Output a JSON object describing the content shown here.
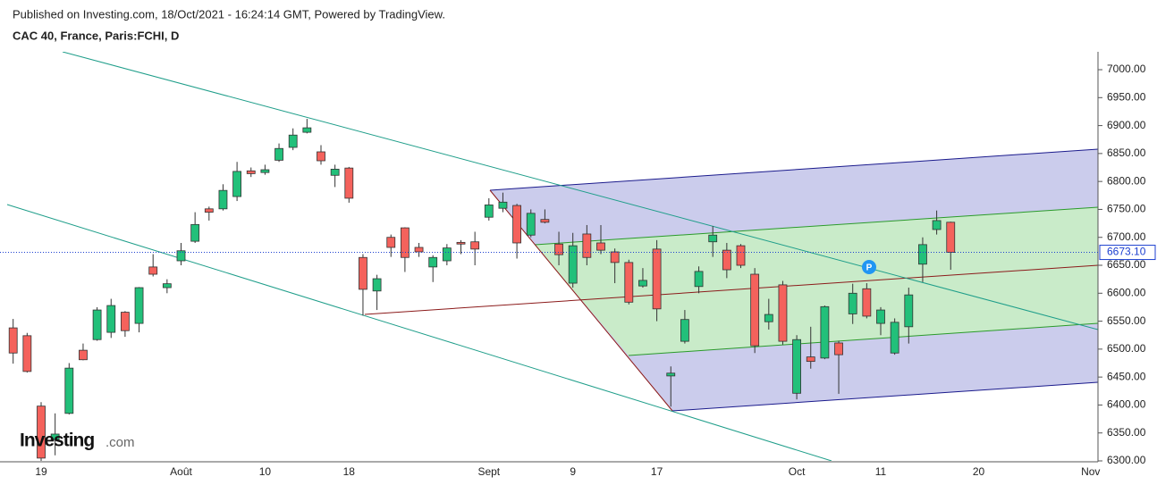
{
  "header": {
    "published": "Published on Investing.com, 18/Oct/2021 - 16:24:14 GMT, Powered by TradingView.",
    "symbol": "CAC 40, France, Paris:FCHI, D"
  },
  "logo": {
    "brand": "Investing",
    "suffix": ".com"
  },
  "marker": "P",
  "chart_data": {
    "type": "candlestick",
    "categories": [
      null,
      null,
      "19",
      null,
      null,
      null,
      null,
      null,
      null,
      null,
      null,
      null,
      "Août",
      null,
      null,
      null,
      null,
      null,
      "10",
      null,
      null,
      null,
      null,
      null,
      "18",
      null,
      null,
      null,
      null,
      null,
      null,
      null,
      null,
      null,
      "Sept",
      null,
      null,
      null,
      null,
      null,
      "9",
      null,
      null,
      null,
      null,
      null,
      "17",
      null,
      null,
      null,
      null,
      null,
      null,
      null,
      null,
      null,
      "Oct",
      null,
      null,
      null,
      null,
      null,
      "11",
      null,
      null,
      null,
      null,
      null,
      null,
      "20",
      null,
      null,
      null,
      null,
      null,
      null,
      null,
      "Nov"
    ],
    "open": [
      6538,
      6524,
      6398,
      6338,
      6385,
      6498,
      6517,
      6530,
      6566,
      6546,
      6647,
      6610,
      6658,
      6693,
      6751,
      6751,
      6773,
      6819,
      6816,
      6838,
      6861,
      6888,
      6853,
      6811,
      6824,
      6664,
      6604,
      6700,
      6717,
      6682,
      6647,
      6658,
      6691,
      6692,
      6736,
      6752,
      6757,
      6704,
      6732,
      6688,
      6618,
      6706,
      6690,
      6674,
      6655,
      6613,
      6679,
      6452,
      6514,
      6612,
      6692,
      6677,
      6685,
      6634,
      6549,
      6615,
      6421,
      6486,
      6484,
      6511,
      6563,
      6608,
      6546,
      6493,
      6540,
      6652,
      6714,
      6727,
      null,
      null,
      null,
      null,
      null,
      null,
      null,
      null,
      null,
      null
    ],
    "high": [
      6554,
      6529,
      6405,
      6385,
      6475,
      6510,
      6575,
      6590,
      6568,
      6611,
      6670,
      6625,
      6690,
      6745,
      6755,
      6795,
      6835,
      6825,
      6830,
      6868,
      6895,
      6912,
      6865,
      6830,
      6826,
      6670,
      6633,
      6705,
      6718,
      6690,
      6668,
      6688,
      6695,
      6710,
      6770,
      6780,
      6760,
      6750,
      6750,
      6710,
      6708,
      6722,
      6722,
      6680,
      6660,
      6645,
      6695,
      6469,
      6570,
      6648,
      6720,
      6690,
      6688,
      6645,
      6590,
      6622,
      6525,
      6540,
      6578,
      6515,
      6617,
      6618,
      6575,
      6555,
      6610,
      6700,
      6748,
      6728,
      null,
      null,
      null,
      null,
      null,
      null,
      null,
      null,
      null,
      null
    ],
    "low": [
      6474,
      6458,
      6300,
      6310,
      6383,
      6480,
      6515,
      6520,
      6522,
      6530,
      6630,
      6600,
      6650,
      6690,
      6730,
      6748,
      6765,
      6808,
      6812,
      6835,
      6856,
      6886,
      6830,
      6790,
      6762,
      6560,
      6570,
      6665,
      6638,
      6665,
      6620,
      6650,
      6670,
      6650,
      6730,
      6745,
      6662,
      6700,
      6725,
      6650,
      6610,
      6650,
      6670,
      6618,
      6580,
      6610,
      6550,
      6397,
      6510,
      6600,
      6665,
      6627,
      6645,
      6493,
      6535,
      6508,
      6410,
      6465,
      6482,
      6420,
      6545,
      6555,
      6525,
      6490,
      6510,
      6620,
      6705,
      6642,
      null,
      null,
      null,
      null,
      null,
      null,
      null,
      null,
      null,
      null
    ],
    "close": [
      6493,
      6460,
      6305,
      6348,
      6466,
      6481,
      6570,
      6578,
      6533,
      6610,
      6634,
      6617,
      6676,
      6723,
      6745,
      6784,
      6818,
      6814,
      6821,
      6859,
      6883,
      6896,
      6837,
      6822,
      6770,
      6607,
      6626,
      6682,
      6664,
      6674,
      6664,
      6681,
      6688,
      6679,
      6758,
      6763,
      6690,
      6743,
      6727,
      6669,
      6685,
      6664,
      6677,
      6655,
      6584,
      6623,
      6572,
      6457,
      6553,
      6639,
      6704,
      6642,
      6650,
      6506,
      6562,
      6514,
      6517,
      6478,
      6576,
      6490,
      6600,
      6559,
      6570,
      6548,
      6597,
      6687,
      6730,
      6673.1,
      null,
      null,
      null,
      null,
      null,
      null,
      null,
      null,
      null,
      null
    ],
    "up_color": "#22c07a",
    "down_color": "#f4625c",
    "last_price": {
      "value": 6673.1,
      "label": "6673.10"
    },
    "ylim": [
      6300,
      7032
    ],
    "yticks": [
      {
        "value": 6300,
        "label": "6300.00"
      },
      {
        "value": 6350,
        "label": "6350.00"
      },
      {
        "value": 6400,
        "label": "6400.00"
      },
      {
        "value": 6450,
        "label": "6450.00"
      },
      {
        "value": 6500,
        "label": "6500.00"
      },
      {
        "value": 6550,
        "label": "6550.00"
      },
      {
        "value": 6600,
        "label": "6600.00"
      },
      {
        "value": 6650,
        "label": "6650.00"
      },
      {
        "value": 6700,
        "label": "6700.00"
      },
      {
        "value": 6750,
        "label": "6750.00"
      },
      {
        "value": 6800,
        "label": "6800.00"
      },
      {
        "value": 6850,
        "label": "6850.00"
      },
      {
        "value": 6900,
        "label": "6900.00"
      },
      {
        "value": 6950,
        "label": "6950.00"
      },
      {
        "value": 7000,
        "label": "7000.00"
      }
    ],
    "grid": false
  }
}
